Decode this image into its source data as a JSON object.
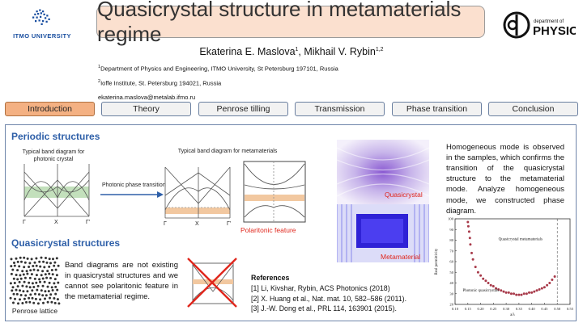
{
  "header": {
    "title": "Quasicrystal structure in metamaterials regime",
    "itmo_label": "ITMO UNIVERSITY",
    "physics_small": "department of",
    "physics_big": "PHYSICS",
    "authors_a": "Ekaterina E. Maslova",
    "authors_a_sup": "1",
    "authors_b": ", Mikhail V. Rybin",
    "authors_b_sup": "1,2",
    "affil1_sup": "1",
    "affil1": "Department of Physics and Engineering, ITMO University, St Petersburg 197101, Russia",
    "affil2_sup": "2",
    "affil2": "Ioffe Institute, St. Petersburg 194021, Russia",
    "email": "ekaterina.maslova@metalab.ifmo.ru"
  },
  "tabs": [
    "Introduction",
    "Theory",
    "Penrose tilling",
    "Transmission",
    "Phase transition",
    "Conclusion"
  ],
  "periodic": {
    "heading": "Periodic structures",
    "label_photonic": "Typical band diagram for photonic crystal",
    "label_meta": "Typical band diagram for metamaterials",
    "label_transition": "Photonic phase transition",
    "label_polaritonic": "Polaritonic feature",
    "tick_gamma": "Γ",
    "tick_x": "X",
    "tick_gamma_prime": "Γ'"
  },
  "quasi": {
    "heading": "Quasicrystal structures",
    "text": "Band diagrams are not existing in quasicrystal structures and we cannot see polaritonic feature in the metamaterial regime.",
    "lattice_label": "Penrose lattice",
    "label_quasicrystal": "Quasicrystal",
    "label_metamaterial": "Metamaterial"
  },
  "right_text": "Homogeneous mode is observed in the samples, which confirms the transition of the quasicrystal structure to the metamaterial mode. Analyze homogeneous mode, we constructed phase diagram.",
  "references": {
    "heading": "References",
    "items": [
      "[1] Li, Kivshar, Rybin, ACS Photonics (2018)",
      "[2] X. Huang et al., Nat. mat. 10, 582–586 (2011).",
      "[3] J.-W. Dong et al., PRL 114, 163901 (2015)."
    ]
  },
  "colors": {
    "accent": "#2e5fa8",
    "title_bg": "#fbe0cf",
    "active_tab": "#f4b183",
    "red": "#e0271d",
    "marker": "#a83a4a"
  },
  "chart_data": {
    "type": "scatter",
    "ylabel": "Real permittivity",
    "xlabel": "a/λ",
    "annotations": [
      "Quasicrystal metamaterials",
      "Photonic quasicrystals"
    ],
    "x_ticks": [
      "0.10",
      "0.15",
      "0.20",
      "0.25",
      "0.30",
      "0.35",
      "0.40",
      "0.45",
      "0.50",
      "0.55"
    ],
    "y_ticks": [
      "20",
      "30",
      "40",
      "50",
      "60",
      "70",
      "80",
      "90",
      "100"
    ],
    "xlim": [
      0.1,
      0.55
    ],
    "ylim": [
      20,
      100
    ],
    "x": [
      0.15,
      0.152,
      0.155,
      0.158,
      0.16,
      0.165,
      0.17,
      0.18,
      0.19,
      0.2,
      0.21,
      0.22,
      0.23,
      0.24,
      0.25,
      0.26,
      0.27,
      0.28,
      0.29,
      0.3,
      0.31,
      0.32,
      0.33,
      0.34,
      0.35,
      0.36,
      0.37,
      0.38,
      0.39,
      0.4,
      0.41,
      0.42,
      0.43,
      0.44,
      0.45,
      0.46,
      0.47,
      0.48,
      0.49
    ],
    "y": [
      97,
      93,
      88,
      82,
      76,
      68,
      62,
      55,
      50,
      47,
      44,
      42,
      40,
      38,
      37,
      35,
      34,
      33,
      32,
      31,
      31,
      30,
      30,
      29,
      29,
      29,
      30,
      30,
      31,
      31,
      32,
      33,
      34,
      35,
      36,
      38,
      40,
      43,
      46
    ],
    "vline_x": 0.5
  }
}
